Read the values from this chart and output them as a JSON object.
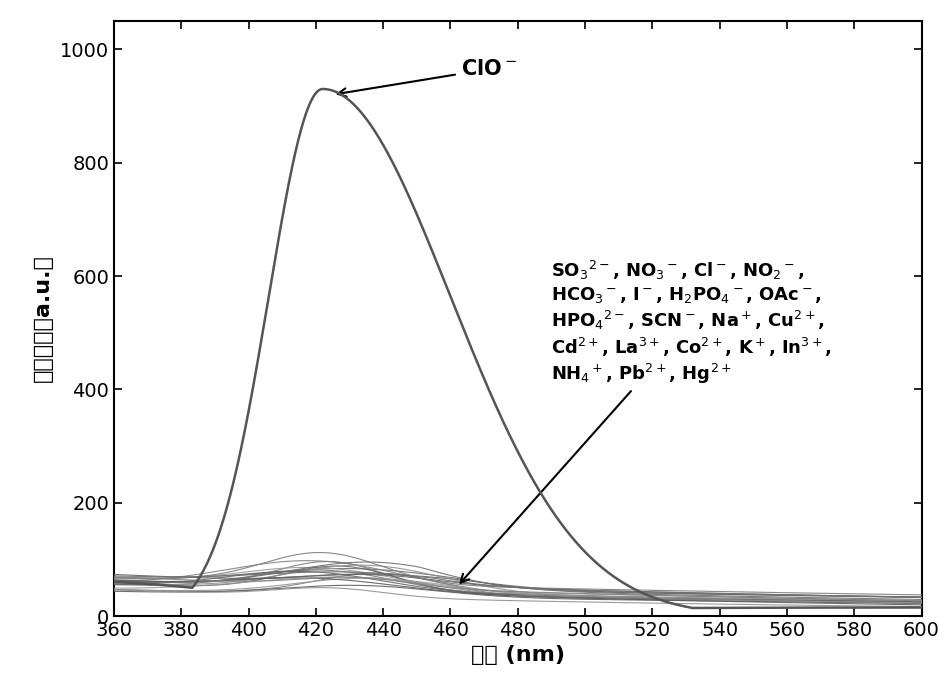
{
  "xlim": [
    360,
    600
  ],
  "ylim": [
    0,
    1050
  ],
  "xlabel": "波长 (nm)",
  "ylabel": "荧光强度（a.u.）",
  "xticks": [
    360,
    380,
    400,
    420,
    440,
    460,
    480,
    500,
    520,
    540,
    560,
    580,
    600
  ],
  "yticks": [
    0,
    200,
    400,
    600,
    800,
    1000
  ],
  "clo_peak_x": 422,
  "clo_peak_y": 930,
  "background_color": "#ffffff",
  "n_other_lines": 20,
  "axis_fontsize": 16,
  "tick_fontsize": 14,
  "annot_fontsize": 13
}
